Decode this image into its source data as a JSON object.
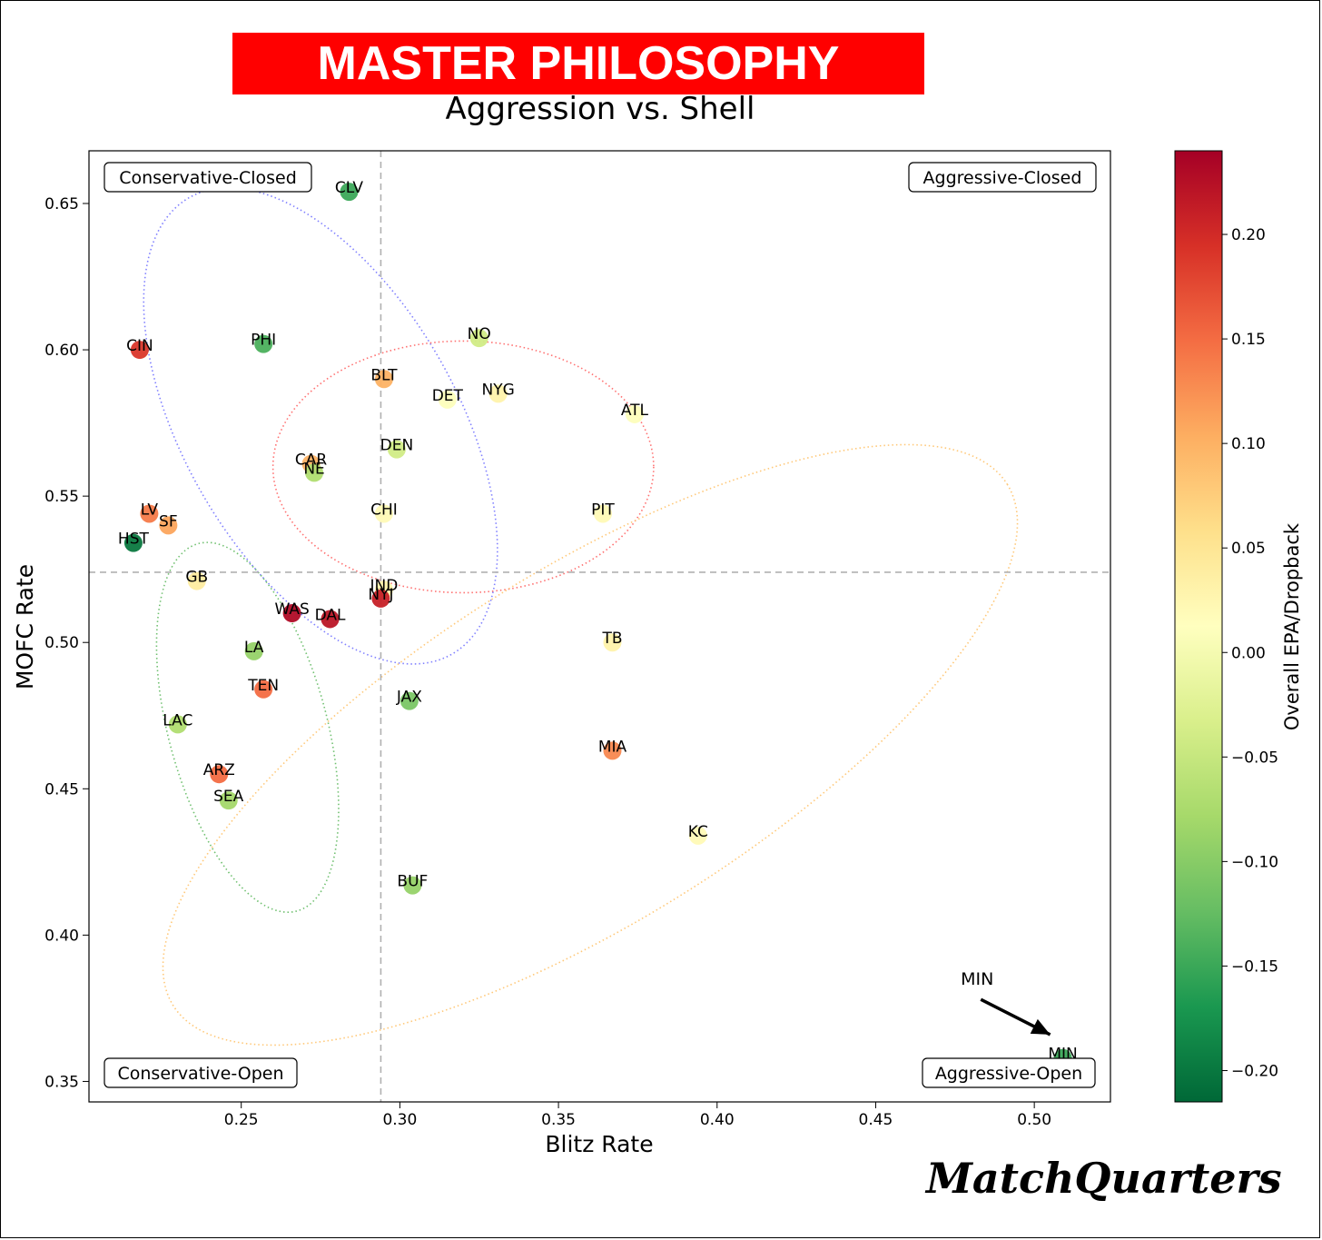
{
  "banner_title": "MASTER PHILOSOPHY",
  "subtitle": "Aggression vs. Shell",
  "brand": "MatchQuarters",
  "colors": {
    "banner": "#ff0000",
    "banner_text": "#ffffff",
    "quadrant_line": "#b0b0b0"
  },
  "chart_data": {
    "type": "scatter",
    "xlabel": "Blitz Rate",
    "ylabel": "MOFC Rate",
    "xlim": [
      0.202,
      0.524
    ],
    "ylim": [
      0.343,
      0.668
    ],
    "xticks": [
      0.25,
      0.3,
      0.35,
      0.4,
      0.45,
      0.5
    ],
    "xtick_labels": [
      "0.25",
      "0.30",
      "0.35",
      "0.40",
      "0.45",
      "0.50"
    ],
    "yticks": [
      0.35,
      0.4,
      0.45,
      0.5,
      0.55,
      0.6,
      0.65
    ],
    "ytick_labels": [
      "0.35",
      "0.40",
      "0.45",
      "0.50",
      "0.55",
      "0.60",
      "0.65"
    ],
    "grid": false,
    "quadrant_lines": {
      "x": 0.294,
      "y": 0.524
    },
    "quadrant_labels": [
      "Conservative-Closed",
      "Aggressive-Closed",
      "Conservative-Open",
      "Aggressive-Open"
    ],
    "colorbar": {
      "label": "Overall EPA/Dropback",
      "colormap": "RdYlGn_r",
      "range": [
        -0.215,
        0.24
      ],
      "ticks": [
        0.2,
        0.15,
        0.1,
        0.05,
        0.0,
        -0.05,
        -0.1,
        -0.15,
        -0.2
      ],
      "tick_labels": [
        "0.20",
        "0.15",
        "0.10",
        "0.05",
        "0.00",
        "−0.05",
        "−0.10",
        "−0.15",
        "−0.20"
      ]
    },
    "annotation": {
      "text": "MIN",
      "xytext": [
        0.482,
        0.383
      ],
      "xy": [
        0.505,
        0.366
      ]
    },
    "points": [
      {
        "team": "CLV",
        "x": 0.284,
        "y": 0.654,
        "epa": -0.15
      },
      {
        "team": "CIN",
        "x": 0.218,
        "y": 0.6,
        "epa": 0.19
      },
      {
        "team": "PHI",
        "x": 0.257,
        "y": 0.602,
        "epa": -0.14
      },
      {
        "team": "NO",
        "x": 0.325,
        "y": 0.604,
        "epa": -0.04
      },
      {
        "team": "BLT",
        "x": 0.295,
        "y": 0.59,
        "epa": 0.1
      },
      {
        "team": "DET",
        "x": 0.315,
        "y": 0.583,
        "epa": 0.01
      },
      {
        "team": "NYG",
        "x": 0.331,
        "y": 0.585,
        "epa": 0.03
      },
      {
        "team": "ATL",
        "x": 0.374,
        "y": 0.578,
        "epa": 0.01
      },
      {
        "team": "DEN",
        "x": 0.299,
        "y": 0.566,
        "epa": -0.04
      },
      {
        "team": "CAR",
        "x": 0.272,
        "y": 0.561,
        "epa": 0.1
      },
      {
        "team": "NE",
        "x": 0.273,
        "y": 0.558,
        "epa": -0.07
      },
      {
        "team": "CHI",
        "x": 0.295,
        "y": 0.544,
        "epa": 0.02
      },
      {
        "team": "PIT",
        "x": 0.364,
        "y": 0.544,
        "epa": 0.02
      },
      {
        "team": "LV",
        "x": 0.221,
        "y": 0.544,
        "epa": 0.14
      },
      {
        "team": "SF",
        "x": 0.227,
        "y": 0.54,
        "epa": 0.11
      },
      {
        "team": "HST",
        "x": 0.216,
        "y": 0.534,
        "epa": -0.2
      },
      {
        "team": "GB",
        "x": 0.236,
        "y": 0.521,
        "epa": 0.04
      },
      {
        "team": "IND",
        "x": 0.295,
        "y": 0.518,
        "epa": 0.03
      },
      {
        "team": "NYJ",
        "x": 0.294,
        "y": 0.515,
        "epa": 0.21
      },
      {
        "team": "WAS",
        "x": 0.266,
        "y": 0.51,
        "epa": 0.23
      },
      {
        "team": "DAL",
        "x": 0.278,
        "y": 0.508,
        "epa": 0.22
      },
      {
        "team": "TB",
        "x": 0.367,
        "y": 0.5,
        "epa": 0.03
      },
      {
        "team": "LA",
        "x": 0.254,
        "y": 0.497,
        "epa": -0.09
      },
      {
        "team": "TEN",
        "x": 0.257,
        "y": 0.484,
        "epa": 0.15
      },
      {
        "team": "JAX",
        "x": 0.303,
        "y": 0.48,
        "epa": -0.11
      },
      {
        "team": "LAC",
        "x": 0.23,
        "y": 0.472,
        "epa": -0.07
      },
      {
        "team": "MIA",
        "x": 0.367,
        "y": 0.463,
        "epa": 0.13
      },
      {
        "team": "ARZ",
        "x": 0.243,
        "y": 0.455,
        "epa": 0.15
      },
      {
        "team": "SEA",
        "x": 0.246,
        "y": 0.446,
        "epa": -0.08
      },
      {
        "team": "KC",
        "x": 0.394,
        "y": 0.434,
        "epa": 0.02
      },
      {
        "team": "BUF",
        "x": 0.304,
        "y": 0.417,
        "epa": -0.09
      },
      {
        "team": "MIN",
        "x": 0.509,
        "y": 0.358,
        "epa": -0.15
      }
    ],
    "cluster_ellipses": [
      {
        "color": "#8080ff",
        "center": [
          0.275,
          0.574
        ],
        "rx": 0.043,
        "ry": 0.09,
        "rotation_deg": 30
      },
      {
        "color": "#ff7070",
        "center": [
          0.32,
          0.56
        ],
        "rx": 0.06,
        "ry": 0.043,
        "rotation_deg": 0
      },
      {
        "color": "#ffc878",
        "center": [
          0.36,
          0.465
        ],
        "rx": 0.155,
        "ry": 0.06,
        "rotation_deg": 32
      },
      {
        "color": "#70c070",
        "center": [
          0.252,
          0.471
        ],
        "rx": 0.025,
        "ry": 0.065,
        "rotation_deg": 15
      }
    ]
  }
}
